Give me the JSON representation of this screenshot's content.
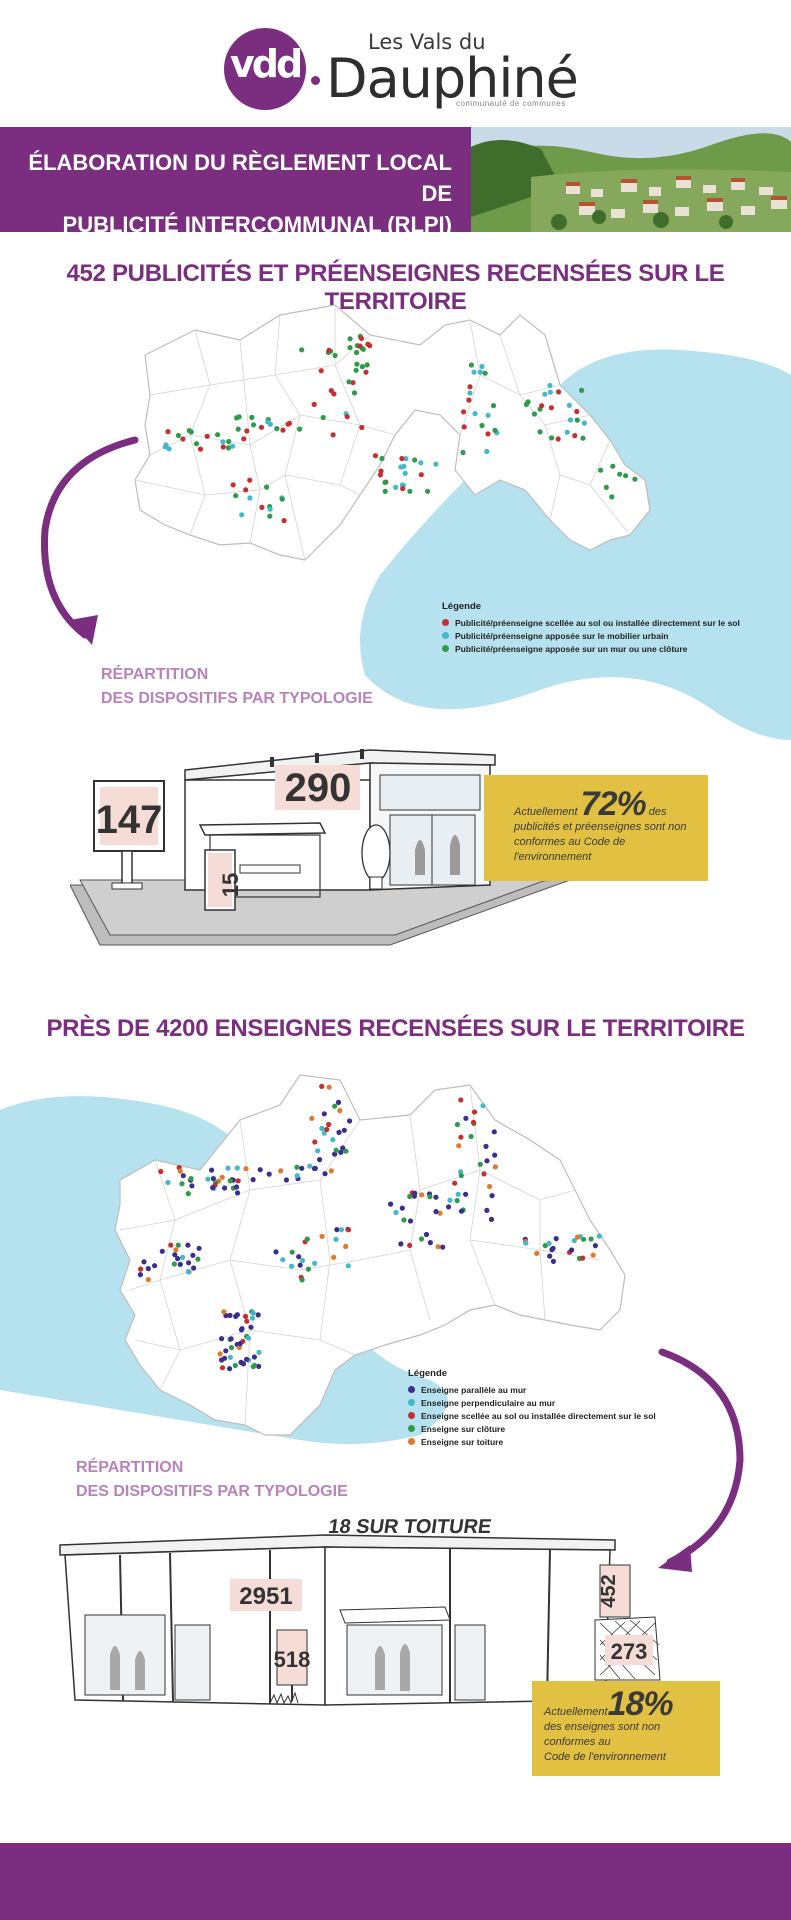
{
  "logo": {
    "mark": "vdd",
    "les_vals_du": "Les Vals du",
    "dauphine": "Dauphiné",
    "subtitle": "communauté de communes"
  },
  "banner": {
    "title_line1": "ÉLABORATION DU RÈGLEMENT LOCAL DE",
    "title_line2": "PUBLICITÉ INTERCOMMUNAL (RLPI)"
  },
  "section1": {
    "title": "452  PUBLICITÉS ET PRÉENSEIGNES RECENSÉES SUR LE TERRITOIRE",
    "legend_title": "Légende",
    "legend": [
      {
        "label": "Publicité/préenseigne scellée au sol ou installée directement sur le sol",
        "color": "#c62f2f"
      },
      {
        "label": "Publicité/préenseigne apposée sur le mobilier urbain",
        "color": "#42b8c8"
      },
      {
        "label": "Publicité/préenseigne apposée sur un mur ou une clôture",
        "color": "#2e9b4a"
      }
    ],
    "repartition_line1": "RÉPARTITION",
    "repartition_line2": "DES DISPOSITIFS PAR TYPOLOGIE",
    "counts": {
      "billboard": "147",
      "wall": "290",
      "urban": "15"
    },
    "stat": {
      "prefix": "Actuellement",
      "value": "72%",
      "suffix": " des",
      "line2": "publicités et préenseignes sont non",
      "line3": "conformes au Code de l'environnement"
    }
  },
  "section2": {
    "title": "PRÈS DE 4200 ENSEIGNES RECENSÉES SUR LE TERRITOIRE",
    "legend_title": "Légende",
    "legend": [
      {
        "label": "Enseigne parallèle au mur",
        "color": "#3a2f8c"
      },
      {
        "label": "Enseigne perpendiculaire au mur",
        "color": "#42b8c8"
      },
      {
        "label": "Enseigne scellée au sol ou installée directement sur le sol",
        "color": "#c62f2f"
      },
      {
        "label": "Enseigne sur clôture",
        "color": "#2e9b4a"
      },
      {
        "label": "Enseigne sur toiture",
        "color": "#e07a2a"
      }
    ],
    "repartition_line1": "RÉPARTITION",
    "repartition_line2": "DES DISPOSITIFS PAR TYPOLOGIE",
    "counts": {
      "roof": "18 SUR TOITURE",
      "parallel": "2951",
      "ground": "518",
      "perpendicular": "452",
      "fence": "273"
    },
    "stat": {
      "prefix": "Actuellement",
      "value": "18%",
      "line2": "des enseignes sont non conformes au",
      "line3": "Code de l'environnement"
    }
  },
  "colors": {
    "brand_purple": "#7b2e80",
    "light_purple": "#b882bb",
    "sky_blue": "#b5e2ee",
    "stat_yellow": "#e2c142"
  }
}
